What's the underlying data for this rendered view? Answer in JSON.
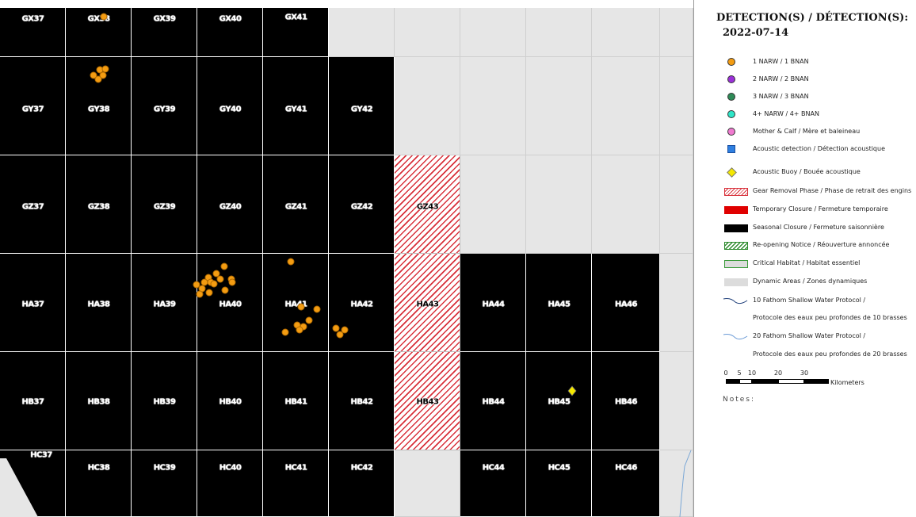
{
  "map": {
    "grid_labels": {
      "GX37": "GX37",
      "GX38": "GX38",
      "GX39": "GX39",
      "GX40": "GX40",
      "GX41": "GX41",
      "GY37": "GY37",
      "GY38": "GY38",
      "GY39": "GY39",
      "GY40": "GY40",
      "GY41": "GY41",
      "GY42": "GY42",
      "GZ37": "GZ37",
      "GZ38": "GZ38",
      "GZ39": "GZ39",
      "GZ40": "GZ40",
      "GZ41": "GZ41",
      "GZ42": "GZ42",
      "GZ43": "GZ43",
      "HA37": "HA37",
      "HA38": "HA38",
      "HA39": "HA39",
      "HA40": "HA40",
      "HA41": "HA41",
      "HA42": "HA42",
      "HA43": "HA43",
      "HA44": "HA44",
      "HA45": "HA45",
      "HA46": "HA46",
      "HB37": "HB37",
      "HB38": "HB38",
      "HB39": "HB39",
      "HB40": "HB40",
      "HB41": "HB41",
      "HB42": "HB42",
      "HB43": "HB43",
      "HB44": "HB44",
      "HB45": "HB45",
      "HB46": "HB46",
      "HC37": "HC37",
      "HC38": "HC38",
      "HC39": "HC39",
      "HC40": "HC40",
      "HC41": "HC41",
      "HC42": "HC42",
      "HC44": "HC44",
      "HC45": "HC45",
      "HC46": "HC46"
    },
    "colors": {
      "seasonal_closure": "#000000",
      "gear_removal_hatch": "#d8303a",
      "dynamic_area": "#e6e6e6",
      "detection_1": "#f39c12",
      "buoy": "#f5e800",
      "water_line": "#7aa7d6"
    }
  },
  "legend": {
    "title": "DETECTION(S) / DÉTECTION(S):",
    "date": "2022-07-14",
    "items": [
      {
        "label": "1 NARW / 1 BNAN",
        "color": "#f39c12",
        "shape": "circle"
      },
      {
        "label": "2 NARW / 2 BNAN",
        "color": "#9b30d9",
        "shape": "circle"
      },
      {
        "label": "3 NARW / 3 BNAN",
        "color": "#2e8b57",
        "shape": "circle"
      },
      {
        "label": "4+ NARW / 4+ BNAN",
        "color": "#2ee6c8",
        "shape": "circle"
      },
      {
        "label": "Mother & Calf / Mère et baleineau",
        "color": "#f07ad0",
        "shape": "circle"
      },
      {
        "label": "Acoustic detection / Détection acoustique",
        "color": "#2f7fe0",
        "shape": "square"
      },
      {
        "label": "Acoustic Buoy / Bouée acoustique",
        "color": "#f5e800",
        "shape": "diamond"
      },
      {
        "label": "Gear Removal Phase / Phase de retrait des engins",
        "color": "#d8303a",
        "shape": "hatch-red"
      },
      {
        "label": "Temporary Closure / Fermeture temporaire",
        "color": "#e00000",
        "shape": "rect"
      },
      {
        "label": "Seasonal Closure / Fermeture saisonnière",
        "color": "#000000",
        "shape": "rect"
      },
      {
        "label": "Re-opening Notice / Réouverture annoncée",
        "color": "#2e8b2e",
        "shape": "hatch-green"
      },
      {
        "label": "Critical Habitat / Habitat essentiel",
        "color": "#3a9a3a",
        "shape": "outline"
      },
      {
        "label": "Dynamic Areas / Zones dynamiques",
        "color": "#dcdcdc",
        "shape": "rect"
      },
      {
        "label": "10 Fathom Shallow Water Protocol /",
        "color": "#1f3f7a",
        "shape": "wave"
      },
      {
        "label": "Protocole des eaux peu profondes de 10 brasses",
        "color": "",
        "shape": "none"
      },
      {
        "label": "20 Fathom Shallow Water Protocol /",
        "color": "#6a9ad6",
        "shape": "wave"
      },
      {
        "label": "Protocole des eaux peu profondes de 20 brasses",
        "color": "",
        "shape": "none"
      }
    ],
    "scale": {
      "ticks": [
        "0",
        "5",
        "10",
        "20",
        "30"
      ],
      "unit": "Kilometers"
    },
    "notes": "Notes:"
  }
}
